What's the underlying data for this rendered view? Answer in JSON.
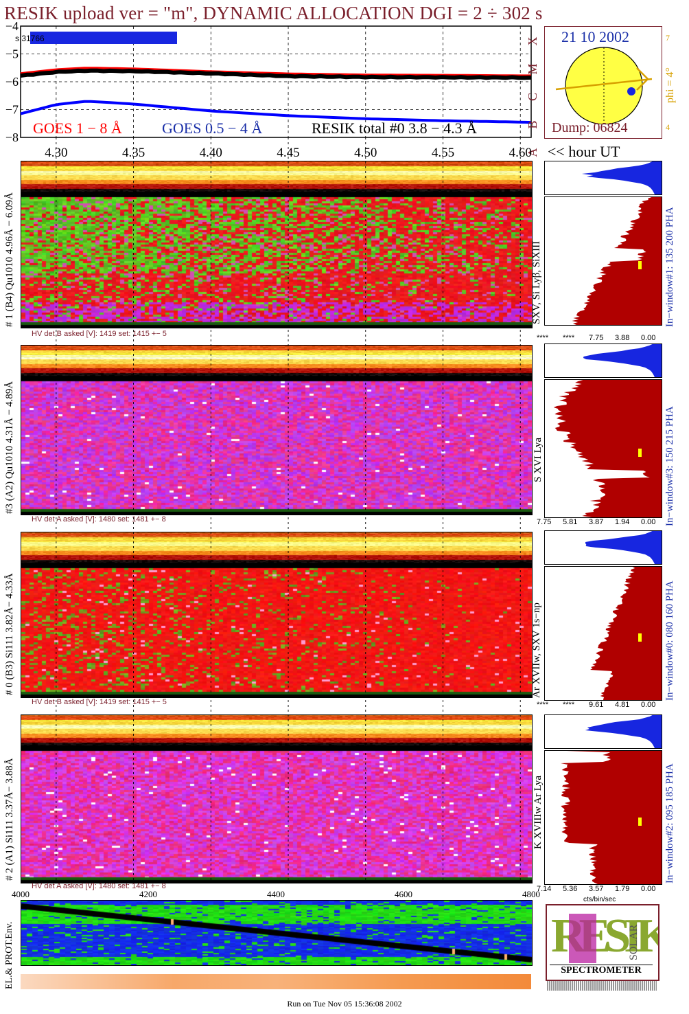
{
  "header": {
    "title": "RESIK upload ver = \"m\", DYNAMIC ALLOCATION  DGI =   2 ÷ 302 s"
  },
  "goes": {
    "y_ticks": [
      "−4",
      "−5",
      "−6",
      "−7",
      "−8"
    ],
    "scale_label": "s 31766",
    "legend_goes18": "GOES 1 − 8 Å",
    "legend_goes054": "GOES 0.5 − 4 Å",
    "legend_resik": "RESIK total #0  3.8 − 4.3 Å",
    "class_letters": [
      "X",
      "M",
      "C",
      "B",
      "A"
    ],
    "colors": {
      "goes18": "#ff0000",
      "goes054": "#0000ff",
      "resik": "#000000"
    }
  },
  "time_axis": {
    "ticks": [
      "4.30",
      "4.35",
      "4.40",
      "4.45",
      "4.50",
      "4.55",
      "4.60"
    ],
    "unit_label": "<< hour UT"
  },
  "sun_box": {
    "date": "21 10 2002",
    "phi_label": "phi =  4°",
    "phi_top": "7",
    "phi_bottom": "4",
    "dump": "Dump: 06824"
  },
  "channels": [
    {
      "side_label": "# 1 (B4) Qu1010 4.96Å − 6.09Å",
      "hv": "HV det B asked [V]:  1419 set:  1415  +−     5",
      "in_window": "In−window#1:  135 200 PHA",
      "lines_label": "SXV, Si Lyβ, SiXIII",
      "pha_ticks": [
        "****",
        "****",
        "7.75",
        "3.88",
        "0.00"
      ]
    },
    {
      "side_label": "#3 (A2) Qu1010  4.31Å − 4.89Å",
      "hv": "HV det A asked [V]:  1480 set:  1481  +−     8",
      "in_window": "In−window#3:  150 215 PHA",
      "lines_label": "S XVI Lya",
      "pha_ticks": [
        "7.75",
        "5.81",
        "3.87",
        "1.94",
        "0.00"
      ]
    },
    {
      "side_label": "# 0 (B3) Si111  3.82Å− 4.33Å",
      "hv": "HV det B asked [V]:  1419 set:  1415  +−     5",
      "in_window": "In−window#0:  080 160 PHA",
      "lines_label": "Ar XVIIw,  SXV 1s−np",
      "pha_ticks": [
        "****",
        "****",
        "9.61",
        "4.81",
        "0.00"
      ]
    },
    {
      "side_label": "# 2 (A1) Si111  3.37Å− 3.88Å",
      "hv": "HV det A asked [V]:  1480 set:  1481  +−     8",
      "in_window": "In−window#2:  095 185 PHA",
      "lines_label": "K XVIIIw   Ar Lya",
      "pha_ticks": [
        "7.14",
        "5.36",
        "3.57",
        "1.79",
        "0.00"
      ]
    }
  ],
  "pha_unit": "cts/bin/sec",
  "env": {
    "label": "EL.& PROT.Env.",
    "x_ticks": [
      "4000",
      "4200",
      "4400",
      "4600",
      "4800"
    ]
  },
  "logo": {
    "bottom": "SPECTROMETER",
    "side": "SOLAR",
    "big": "RESIK"
  },
  "footer": {
    "run_text": "Run on Tue Nov 05 15:36:08 2002"
  },
  "chart_data": {
    "type": "line",
    "title": "RESIK upload ver = \"m\", DYNAMIC ALLOCATION  DGI =   2 ÷ 302 s",
    "xlabel": "<< hour UT",
    "x_ticks": [
      4.3,
      4.35,
      4.4,
      4.45,
      4.5,
      4.55,
      4.6
    ],
    "xlim": [
      4.277,
      4.607
    ],
    "ylim": [
      -8,
      -4
    ],
    "y_scale": "log10 flux",
    "legend": "bottom",
    "series": [
      {
        "name": "GOES 1 − 8 Å",
        "x": [
          4.277,
          4.3,
          4.32,
          4.35,
          4.4,
          4.45,
          4.5,
          4.55,
          4.6,
          4.607
        ],
        "values": [
          -5.72,
          -5.58,
          -5.52,
          -5.55,
          -5.65,
          -5.73,
          -5.77,
          -5.78,
          -5.8,
          -5.8
        ]
      },
      {
        "name": "GOES 0.5 − 4 Å",
        "x": [
          4.277,
          4.3,
          4.32,
          4.35,
          4.4,
          4.45,
          4.5,
          4.55,
          4.6,
          4.607
        ],
        "values": [
          -7.15,
          -6.82,
          -6.7,
          -6.8,
          -7.05,
          -7.22,
          -7.33,
          -7.4,
          -7.45,
          -7.46
        ]
      },
      {
        "name": "RESIK total #0  3.8 − 4.3 Å",
        "x": [
          4.277,
          4.3,
          4.32,
          4.35,
          4.4,
          4.45,
          4.5,
          4.55,
          4.6,
          4.607
        ],
        "values": [
          -5.78,
          -5.65,
          -5.6,
          -5.62,
          -5.7,
          -5.8,
          -5.83,
          -5.84,
          -5.85,
          -5.86
        ]
      }
    ]
  }
}
